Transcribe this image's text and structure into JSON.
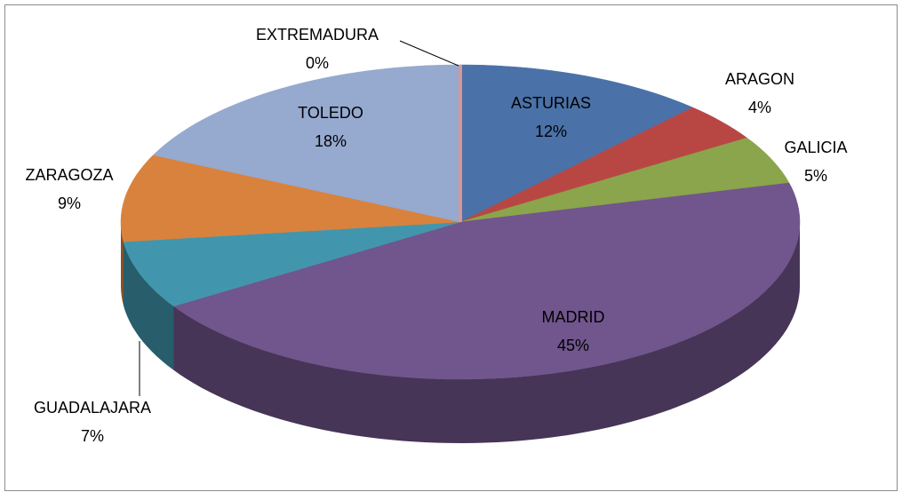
{
  "chart_data": {
    "type": "pie",
    "categories": [
      "ASTURIAS",
      "ARAGON",
      "GALICIA",
      "MADRID",
      "GUADALAJARA",
      "ZARAGOZA",
      "TOLEDO",
      "EXTREMADURA"
    ],
    "values": [
      12,
      4,
      5,
      45,
      7,
      9,
      18,
      0
    ],
    "value_labels": [
      "12%",
      "4%",
      "5%",
      "45%",
      "7%",
      "9%",
      "18%",
      "0%"
    ],
    "colors": [
      "#4a72a8",
      "#b84744",
      "#8aa54b",
      "#71558d",
      "#4196ad",
      "#d9823d",
      "#96a9cf",
      "#d99694"
    ]
  }
}
